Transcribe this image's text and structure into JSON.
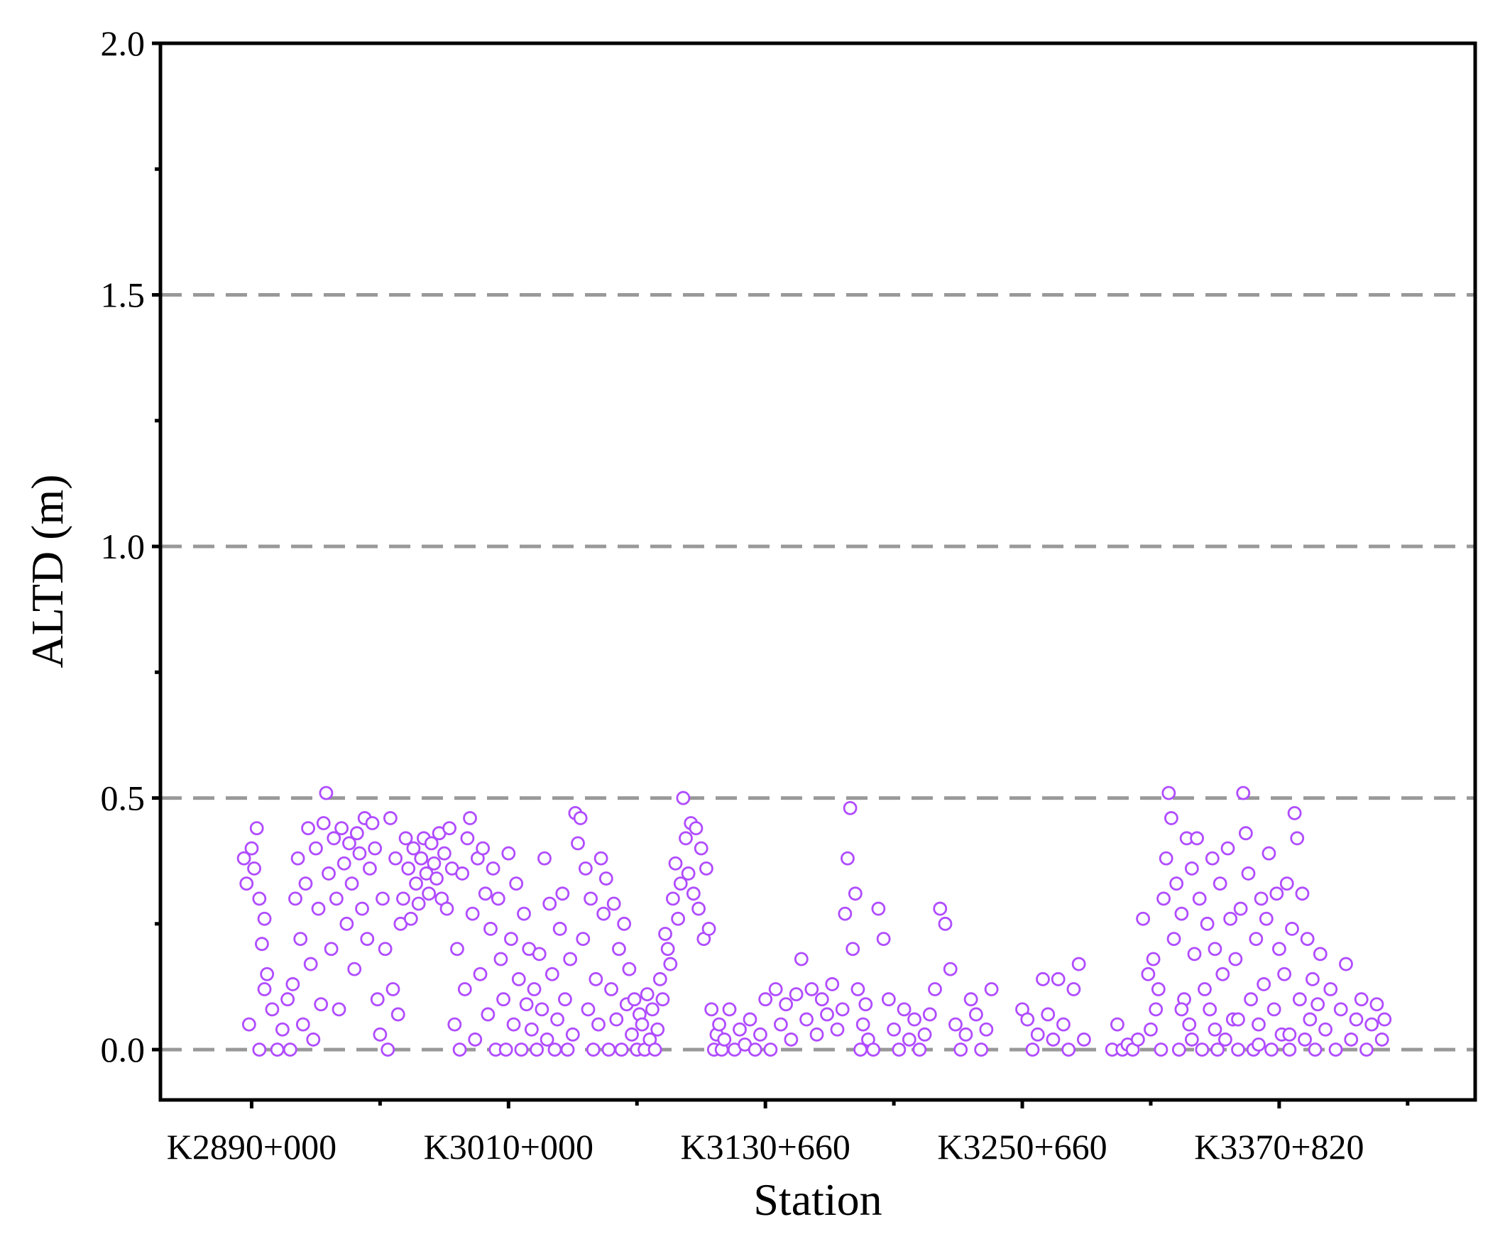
{
  "chart_data": {
    "type": "scatter",
    "x_label": "Station",
    "y_label": "ALTD (m)",
    "xlim": [
      -35.5,
      476.3
    ],
    "ylim": [
      -0.1,
      2.0
    ],
    "xticks": [
      {
        "value": 0,
        "label": "K2890+000"
      },
      {
        "value": 100,
        "label": "K3010+000"
      },
      {
        "value": 200,
        "label": "K3130+660"
      },
      {
        "value": 300,
        "label": "K3250+660"
      },
      {
        "value": 400,
        "label": "K3370+820"
      }
    ],
    "xminor_ticks": [
      50,
      150,
      250,
      350,
      450
    ],
    "yticks": [
      {
        "value": 0,
        "label": "0.0"
      },
      {
        "value": 0.5,
        "label": "0.5"
      },
      {
        "value": 1,
        "label": "1.0"
      },
      {
        "value": 1.5,
        "label": "1.5"
      },
      {
        "value": 2,
        "label": "2.0"
      }
    ],
    "yminor_ticks": [
      0.25,
      0.75,
      1.25,
      1.75
    ],
    "grid": true,
    "grid_style": "dashed",
    "grid_color": "#999999",
    "series": [
      {
        "color": "#b04cff",
        "x": [
          -3,
          -2,
          -1,
          0,
          1,
          2,
          3,
          4,
          5,
          3,
          5,
          6,
          8,
          10,
          12,
          14,
          15,
          16,
          17,
          18,
          19,
          20,
          21,
          22,
          23,
          24,
          25,
          26,
          27,
          28,
          29,
          30,
          31,
          32,
          33,
          34,
          35,
          36,
          37,
          38,
          39,
          40,
          41,
          42,
          43,
          44,
          45,
          46,
          47,
          48,
          49,
          50,
          51,
          52,
          53,
          54,
          55,
          56,
          57,
          58,
          59,
          60,
          61,
          62,
          63,
          64,
          65,
          66,
          67,
          68,
          69,
          70,
          71,
          72,
          73,
          74,
          75,
          76,
          77,
          78,
          79,
          80,
          81,
          82,
          83,
          84,
          85,
          86,
          87,
          88,
          89,
          90,
          91,
          92,
          93,
          94,
          95,
          96,
          97,
          98,
          99,
          100,
          101,
          102,
          103,
          104,
          105,
          106,
          107,
          108,
          109,
          110,
          111,
          112,
          113,
          114,
          115,
          116,
          117,
          118,
          119,
          120,
          121,
          122,
          123,
          124,
          125,
          126,
          127,
          128,
          129,
          130,
          131,
          132,
          133,
          134,
          135,
          136,
          137,
          138,
          139,
          140,
          141,
          142,
          143,
          144,
          145,
          146,
          147,
          148,
          149,
          150,
          151,
          152,
          153,
          154,
          155,
          156,
          157,
          158,
          159,
          160,
          161,
          162,
          163,
          164,
          165,
          166,
          167,
          168,
          169,
          170,
          171,
          172,
          173,
          174,
          175,
          176,
          177,
          178,
          179,
          180,
          181,
          182,
          183,
          184,
          186,
          188,
          190,
          192,
          194,
          196,
          198,
          200,
          202,
          204,
          206,
          208,
          210,
          212,
          214,
          216,
          218,
          220,
          222,
          224,
          226,
          228,
          230,
          231,
          232,
          233,
          234,
          235,
          236,
          237,
          238,
          239,
          240,
          242,
          244,
          246,
          248,
          250,
          252,
          254,
          256,
          258,
          260,
          262,
          264,
          266,
          268,
          270,
          272,
          274,
          276,
          278,
          280,
          282,
          284,
          286,
          288,
          300,
          302,
          304,
          306,
          308,
          310,
          312,
          314,
          316,
          318,
          320,
          322,
          324,
          335,
          337,
          339,
          341,
          343,
          345,
          347,
          349,
          350,
          351,
          352,
          353,
          354,
          355,
          356,
          357,
          358,
          359,
          360,
          361,
          362,
          363,
          364,
          365,
          366,
          367,
          368,
          369,
          370,
          371,
          372,
          373,
          374,
          375,
          376,
          377,
          378,
          379,
          380,
          381,
          382,
          383,
          384,
          385,
          386,
          387,
          388,
          389,
          390,
          391,
          392,
          393,
          394,
          395,
          396,
          397,
          398,
          399,
          400,
          401,
          402,
          403,
          404,
          405,
          406,
          407,
          408,
          409,
          410,
          411,
          412,
          413,
          414,
          415,
          416,
          418,
          420,
          422,
          424,
          426,
          428,
          430,
          432,
          434,
          436,
          438,
          440,
          441,
          362,
          366,
          375,
          384,
          392,
          404
        ],
        "values": [
          0.38,
          0.33,
          0.05,
          0.4,
          0.36,
          0.44,
          0.3,
          0.21,
          0.12,
          0.0,
          0.26,
          0.15,
          0.08,
          0.0,
          0.04,
          0.1,
          0.0,
          0.13,
          0.3,
          0.38,
          0.22,
          0.05,
          0.33,
          0.44,
          0.17,
          0.02,
          0.4,
          0.28,
          0.09,
          0.45,
          0.51,
          0.35,
          0.2,
          0.42,
          0.3,
          0.08,
          0.44,
          0.37,
          0.25,
          0.41,
          0.33,
          0.16,
          0.43,
          0.39,
          0.28,
          0.46,
          0.22,
          0.36,
          0.45,
          0.4,
          0.1,
          0.03,
          0.3,
          0.2,
          0.0,
          0.46,
          0.12,
          0.38,
          0.07,
          0.25,
          0.3,
          0.42,
          0.36,
          0.26,
          0.4,
          0.33,
          0.29,
          0.38,
          0.42,
          0.35,
          0.31,
          0.41,
          0.37,
          0.34,
          0.43,
          0.3,
          0.39,
          0.28,
          0.44,
          0.36,
          0.05,
          0.2,
          0.0,
          0.35,
          0.12,
          0.42,
          0.46,
          0.27,
          0.02,
          0.38,
          0.15,
          0.4,
          0.31,
          0.07,
          0.24,
          0.36,
          0.0,
          0.3,
          0.18,
          0.1,
          0.0,
          0.39,
          0.22,
          0.05,
          0.33,
          0.14,
          0.0,
          0.27,
          0.09,
          0.2,
          0.04,
          0.12,
          0.0,
          0.19,
          0.08,
          0.38,
          0.02,
          0.29,
          0.15,
          0.0,
          0.06,
          0.24,
          0.31,
          0.1,
          0.0,
          0.18,
          0.03,
          0.47,
          0.41,
          0.46,
          0.22,
          0.36,
          0.08,
          0.3,
          0.0,
          0.14,
          0.05,
          0.38,
          0.27,
          0.34,
          0.0,
          0.12,
          0.29,
          0.06,
          0.2,
          0.0,
          0.25,
          0.09,
          0.16,
          0.03,
          0.1,
          0.0,
          0.07,
          0.05,
          0.0,
          0.11,
          0.02,
          0.08,
          0.0,
          0.04,
          0.14,
          0.1,
          0.23,
          0.2,
          0.17,
          0.3,
          0.37,
          0.26,
          0.33,
          0.5,
          0.42,
          0.35,
          0.45,
          0.31,
          0.44,
          0.28,
          0.4,
          0.22,
          0.36,
          0.24,
          0.08,
          0.0,
          0.03,
          0.05,
          0.0,
          0.02,
          0.08,
          0.0,
          0.04,
          0.01,
          0.06,
          0.0,
          0.03,
          0.1,
          0.0,
          0.12,
          0.05,
          0.09,
          0.02,
          0.11,
          0.18,
          0.06,
          0.12,
          0.03,
          0.1,
          0.07,
          0.13,
          0.04,
          0.08,
          0.27,
          0.38,
          0.48,
          0.2,
          0.31,
          0.12,
          0.0,
          0.05,
          0.09,
          0.02,
          0.0,
          0.28,
          0.22,
          0.1,
          0.04,
          0.0,
          0.08,
          0.02,
          0.06,
          0.0,
          0.03,
          0.07,
          0.12,
          0.28,
          0.25,
          0.16,
          0.05,
          0.0,
          0.03,
          0.1,
          0.07,
          0.0,
          0.04,
          0.12,
          0.08,
          0.06,
          0.0,
          0.03,
          0.14,
          0.07,
          0.02,
          0.14,
          0.05,
          0.0,
          0.12,
          0.17,
          0.02,
          0.0,
          0.05,
          0.0,
          0.01,
          0.0,
          0.02,
          0.26,
          0.15,
          0.04,
          0.18,
          0.08,
          0.12,
          0.0,
          0.3,
          0.38,
          0.51,
          0.46,
          0.22,
          0.33,
          0.0,
          0.27,
          0.1,
          0.42,
          0.05,
          0.36,
          0.19,
          0.42,
          0.3,
          0.0,
          0.12,
          0.25,
          0.08,
          0.38,
          0.2,
          0.0,
          0.33,
          0.15,
          0.02,
          0.4,
          0.26,
          0.06,
          0.18,
          0.0,
          0.28,
          0.51,
          0.43,
          0.35,
          0.1,
          0.0,
          0.22,
          0.05,
          0.3,
          0.13,
          0.26,
          0.39,
          0.0,
          0.08,
          0.31,
          0.2,
          0.03,
          0.15,
          0.33,
          0.0,
          0.24,
          0.47,
          0.42,
          0.1,
          0.31,
          0.02,
          0.22,
          0.06,
          0.14,
          0.0,
          0.09,
          0.19,
          0.04,
          0.12,
          0.0,
          0.08,
          0.17,
          0.02,
          0.06,
          0.1,
          0.0,
          0.05,
          0.09,
          0.02,
          0.06,
          0.08,
          0.02,
          0.04,
          0.06,
          0.01,
          0.03
        ]
      }
    ]
  }
}
